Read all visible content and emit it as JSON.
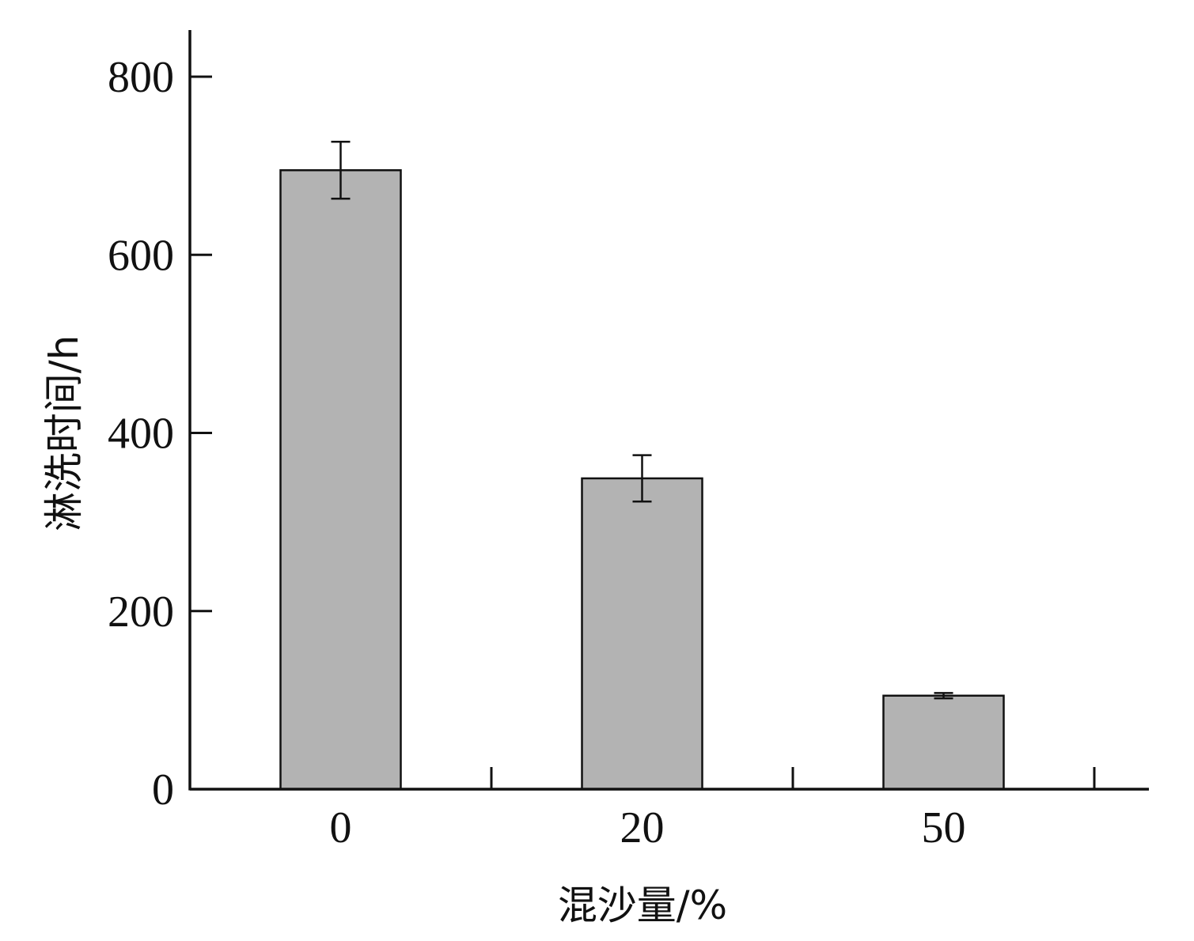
{
  "chart_data": {
    "type": "bar",
    "title": "",
    "xlabel": "混沙量/%",
    "ylabel": "淋洗时间/h",
    "categories": [
      "0",
      "20",
      "50"
    ],
    "values": [
      695,
      349,
      105
    ],
    "error": [
      32,
      26,
      3
    ],
    "ylim": [
      0,
      850
    ],
    "yticks": [
      0,
      200,
      400,
      600,
      800
    ],
    "y_tick_labels": [
      "0",
      "200",
      "400",
      "600",
      "800"
    ],
    "grid": false,
    "legend": "none",
    "colors": {
      "bar_fill": "#b3b3b3",
      "bar_stroke": "#111111",
      "axis": "#111111"
    }
  }
}
